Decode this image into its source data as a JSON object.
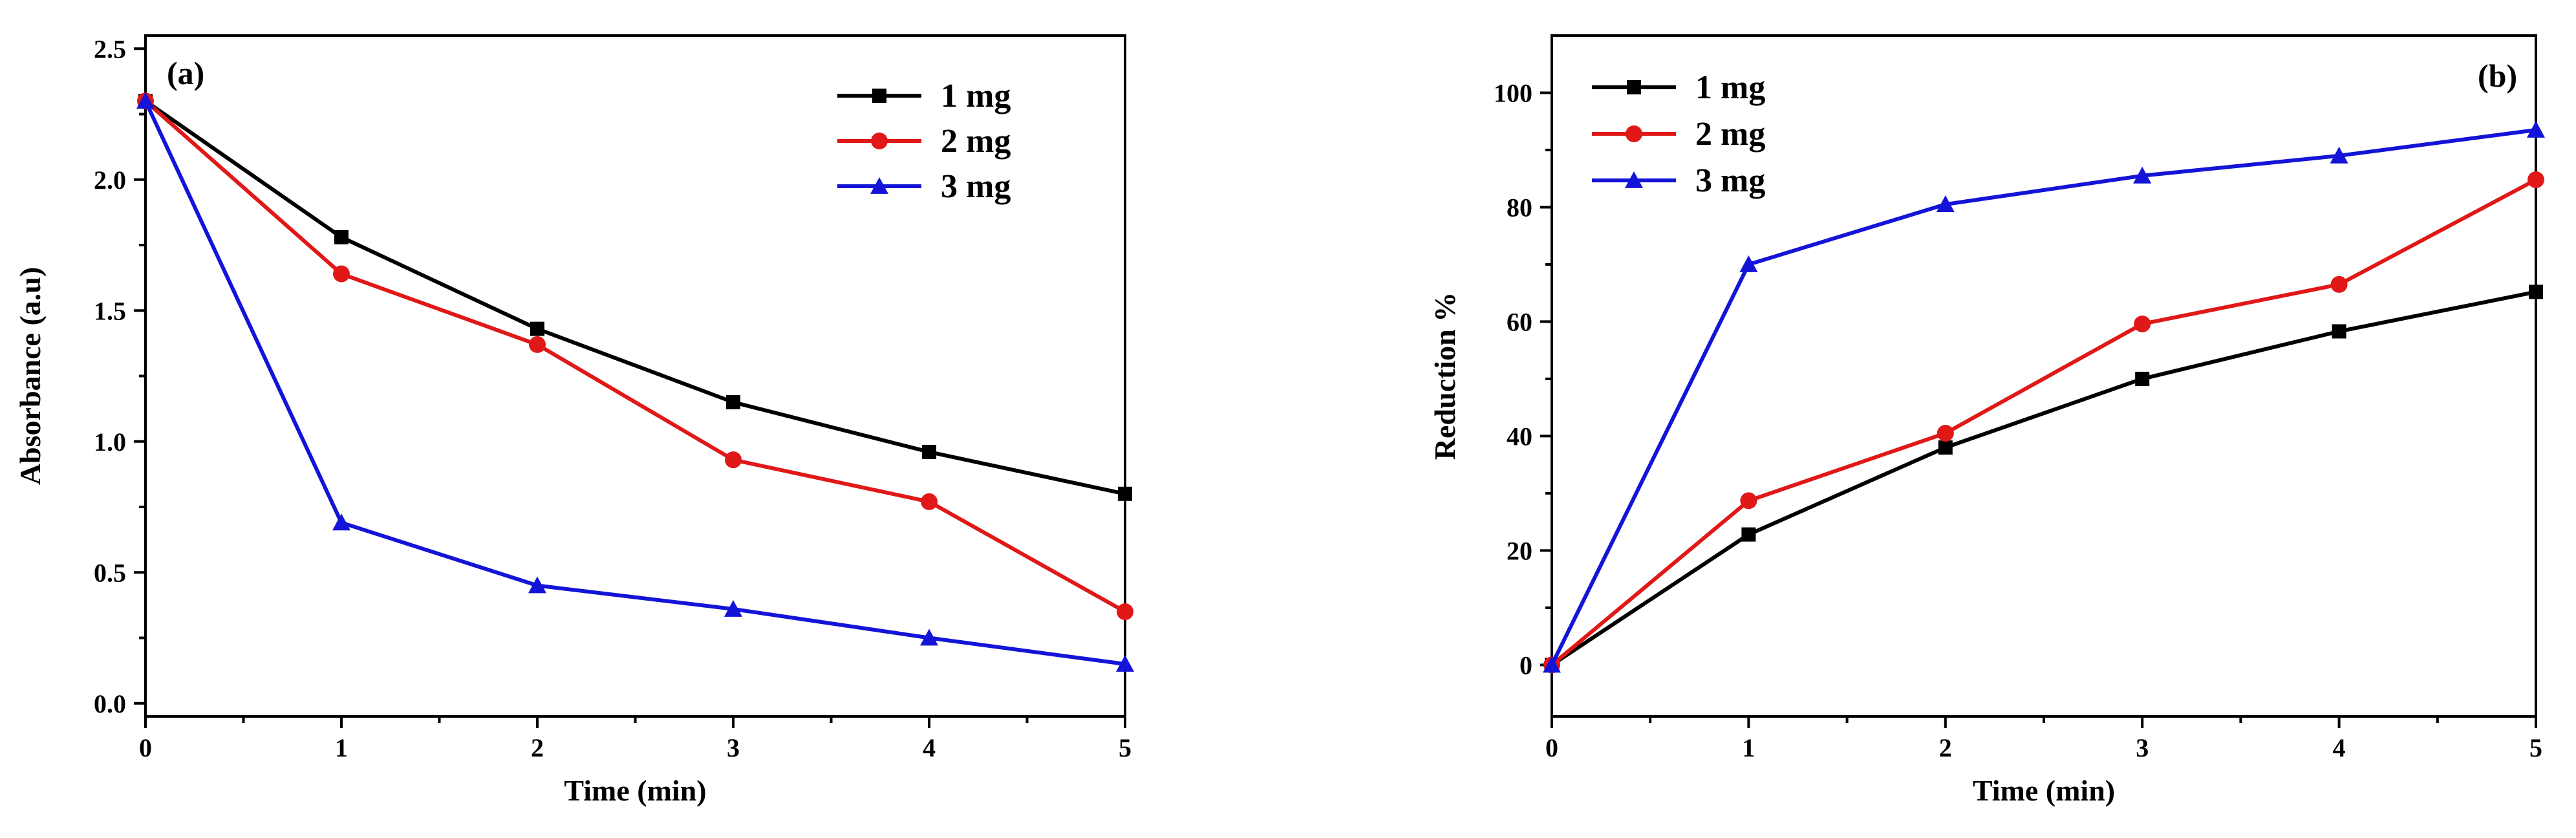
{
  "chart_data": [
    {
      "type": "line",
      "panel_label": "(a)",
      "xlabel": "Time (min)",
      "ylabel": "Absorbance (a.u)",
      "xlim": [
        0,
        5
      ],
      "ylim": [
        -0.05,
        2.55
      ],
      "xticks": [
        0,
        1,
        2,
        3,
        4,
        5
      ],
      "yticks": [
        0.0,
        0.5,
        1.0,
        1.5,
        2.0,
        2.5
      ],
      "ytick_labels": [
        "0.0",
        "0.5",
        "1.0",
        "1.5",
        "2.0",
        "2.5"
      ],
      "legend_position": "top-right",
      "x": [
        0,
        1,
        2,
        3,
        4,
        5
      ],
      "series": [
        {
          "name": "1 mg",
          "color": "#000000",
          "marker": "square",
          "values": [
            2.3,
            1.78,
            1.43,
            1.15,
            0.96,
            0.8
          ]
        },
        {
          "name": "2 mg",
          "color": "#e01818",
          "marker": "circle",
          "values": [
            2.3,
            1.64,
            1.37,
            0.93,
            0.77,
            0.35
          ]
        },
        {
          "name": "3 mg",
          "color": "#1414d8",
          "marker": "triangle",
          "values": [
            2.3,
            0.69,
            0.45,
            0.36,
            0.25,
            0.15
          ]
        }
      ]
    },
    {
      "type": "line",
      "panel_label": "(b)",
      "xlabel": "Time (min)",
      "ylabel": "Reduction %",
      "xlim": [
        0,
        5
      ],
      "ylim": [
        -9,
        110
      ],
      "xticks": [
        0,
        1,
        2,
        3,
        4,
        5
      ],
      "yticks": [
        0,
        20,
        40,
        60,
        80,
        100
      ],
      "ytick_labels": [
        "0",
        "20",
        "40",
        "60",
        "80",
        "100"
      ],
      "legend_position": "top-left",
      "x": [
        0,
        1,
        2,
        3,
        4,
        5
      ],
      "series": [
        {
          "name": "1 mg",
          "color": "#000000",
          "marker": "square",
          "values": [
            0,
            22.8,
            38.0,
            50.0,
            58.3,
            65.2
          ]
        },
        {
          "name": "2 mg",
          "color": "#e01818",
          "marker": "circle",
          "values": [
            0,
            28.7,
            40.5,
            59.6,
            66.5,
            84.8
          ]
        },
        {
          "name": "3 mg",
          "color": "#1414d8",
          "marker": "triangle",
          "values": [
            0,
            70.0,
            80.5,
            85.5,
            89.0,
            93.5
          ]
        }
      ]
    }
  ]
}
